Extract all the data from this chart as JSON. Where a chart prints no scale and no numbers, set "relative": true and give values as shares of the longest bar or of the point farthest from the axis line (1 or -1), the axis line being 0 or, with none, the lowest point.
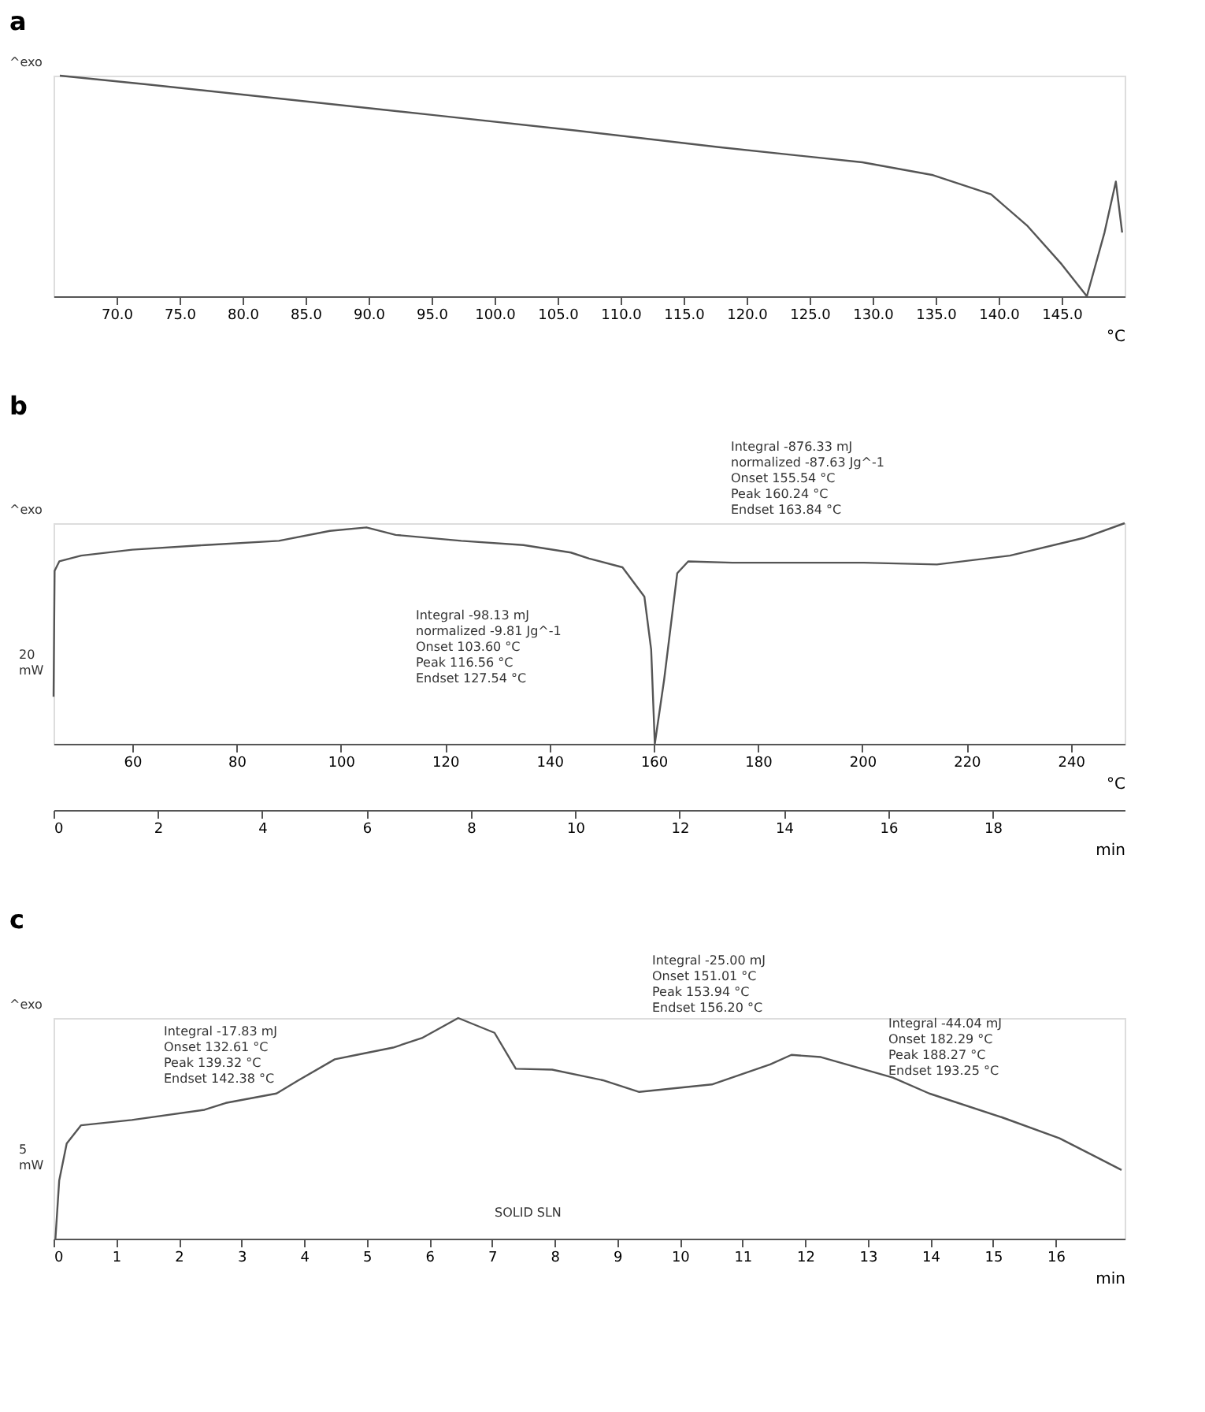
{
  "chart_data": [
    {
      "type": "line",
      "title": "a",
      "relative": true,
      "xlabel": "°C",
      "xlim": [
        65,
        150
      ],
      "xticks": [
        {
          "value": 70,
          "label": "70.0"
        },
        {
          "value": 75,
          "label": "75.0"
        },
        {
          "value": 80,
          "label": "80.0"
        },
        {
          "value": 85,
          "label": "85.0"
        },
        {
          "value": 90,
          "label": "90.0"
        },
        {
          "value": 95,
          "label": "95.0"
        },
        {
          "value": 100,
          "label": "100.0"
        },
        {
          "value": 105,
          "label": "105.0"
        },
        {
          "value": 110,
          "label": "110.0"
        },
        {
          "value": 115,
          "label": "115.0"
        },
        {
          "value": 120,
          "label": "120.0"
        },
        {
          "value": 125,
          "label": "125.0"
        },
        {
          "value": 130,
          "label": "130.0"
        },
        {
          "value": 135,
          "label": "135.0"
        },
        {
          "value": 140,
          "label": "140.0"
        },
        {
          "value": 145,
          "label": "145.0"
        }
      ],
      "x": [
        65.5,
        72.5,
        83.9,
        95.2,
        106.5,
        117.8,
        129.2,
        134.8,
        139.4,
        142.3,
        145.0,
        147.0,
        148.4,
        149.3,
        149.8
      ],
      "series": [
        {
          "color": "#555555",
          "values": [
            1.0,
            0.96,
            0.89,
            0.821,
            0.751,
            0.676,
            0.607,
            0.549,
            0.462,
            0.318,
            0.145,
            0,
            0.289,
            0.52,
            0.289
          ]
        }
      ],
      "annotations": [
        "^exo"
      ],
      "tick_labels": "x"
    },
    {
      "type": "line",
      "title": "b",
      "relative": true,
      "xlabel": "°C",
      "xlim": [
        44.9,
        250.3
      ],
      "xticks": [
        60,
        80,
        100,
        120,
        140,
        160,
        180,
        200,
        220,
        240
      ],
      "x2label": "min",
      "x2lim": [
        0,
        20.53
      ],
      "x2ticks": [
        0,
        2,
        4,
        6,
        8,
        10,
        12,
        14,
        16,
        18
      ],
      "x": [
        44.9,
        45.1,
        46.0,
        50.2,
        60.0,
        74.0,
        88.1,
        97.9,
        104.9,
        110.5,
        123.1,
        135.0,
        144.1,
        147.6,
        154.0,
        158.2,
        159.5,
        160.2,
        162.0,
        164.5,
        166.6,
        175.1,
        200.3,
        214.3,
        228.3,
        242.4,
        250.3
      ],
      "series": [
        {
          "color": "#555555",
          "values": [
            0.213,
            0.784,
            0.827,
            0.853,
            0.88,
            0.901,
            0.92,
            0.965,
            0.981,
            0.947,
            0.92,
            0.901,
            0.867,
            0.84,
            0.8,
            0.667,
            0.427,
            0.0,
            0.293,
            0.773,
            0.827,
            0.821,
            0.821,
            0.813,
            0.853,
            0.933,
            1.0
          ]
        }
      ],
      "annotations": [
        "^exo",
        "Integral   -98.13 mJ\n  normalized   -9.81 Jg^-1\nOnset   103.60 °C\nPeak   116.56 °C\nEndset   127.54 °C",
        "Integral   -876.33 mJ\n  normalized   -87.63 Jg^-1\nOnset   155.54 °C\nPeak   160.24 °C\nEndset   163.84 °C",
        "20\nmW"
      ],
      "tick_labels": "x"
    },
    {
      "type": "line",
      "title": "c",
      "relative": true,
      "xlabel": "min",
      "xlim": [
        0,
        17.1
      ],
      "xticks": [
        0,
        1,
        2,
        3,
        4,
        5,
        6,
        7,
        8,
        9,
        10,
        11,
        12,
        13,
        14,
        15,
        16
      ],
      "x": [
        0.03,
        0.09,
        0.21,
        0.44,
        1.25,
        2.41,
        2.75,
        3.56,
        3.91,
        4.49,
        4.84,
        5.42,
        5.88,
        6.46,
        7.04,
        7.38,
        7.96,
        8.77,
        9.35,
        10.51,
        11.44,
        11.78,
        12.25,
        13.4,
        13.98,
        15.14,
        16.06,
        16.64,
        17.05
      ],
      "series": [
        {
          "color": "#555555",
          "values": [
            0,
            0.263,
            0.431,
            0.514,
            0.538,
            0.584,
            0.615,
            0.658,
            0.718,
            0.813,
            0.833,
            0.866,
            0.909,
            1.0,
            0.933,
            0.77,
            0.766,
            0.718,
            0.665,
            0.699,
            0.79,
            0.833,
            0.823,
            0.73,
            0.658,
            0.55,
            0.455,
            0.371,
            0.311
          ]
        }
      ],
      "annotations": [
        "^exo",
        "Integral   -17.83 mJ\nOnset   132.61 °C\nPeak   139.32 °C\nEndset   142.38 °C",
        "Integral   -25.00 mJ\nOnset   151.01 °C\nPeak   153.94 °C\nEndset   156.20 °C",
        "Integral   -44.04 mJ\nOnset   182.29 °C\nPeak   188.27 °C\nEndset   193.25 °C",
        "5\nmW",
        "SOLID SLN"
      ],
      "tick_labels": "x"
    }
  ]
}
